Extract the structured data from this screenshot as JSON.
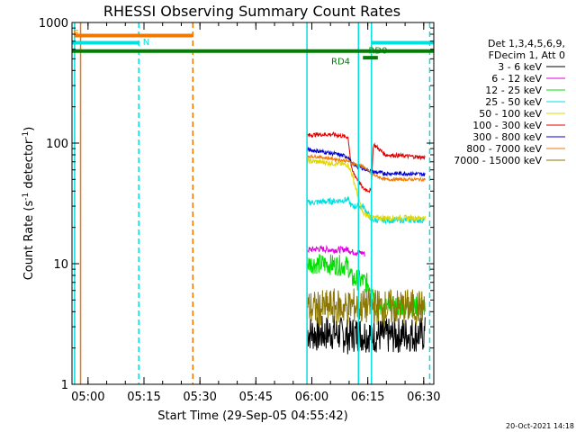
{
  "chart_data": {
    "type": "line",
    "title": "RHESSI Observing Summary Count Rates",
    "xlabel": "Start Time (29-Sep-05 04:55:42)",
    "ylabel": "Count Rate (s",
    "ylabel_sup": "-1",
    "ylabel_mid": " detector",
    "ylabel_sup2": "-1",
    "ylabel_end": ")",
    "xlim_minutes": [
      0,
      97
    ],
    "ylim": [
      1,
      1000
    ],
    "yscale": "log",
    "x_ticks": [
      {
        "label": "05:00",
        "minute": 4.3
      },
      {
        "label": "05:15",
        "minute": 19.3
      },
      {
        "label": "05:30",
        "minute": 34.3
      },
      {
        "label": "05:45",
        "minute": 49.3
      },
      {
        "label": "06:00",
        "minute": 64.3
      },
      {
        "label": "06:15",
        "minute": 79.3
      },
      {
        "label": "06:30",
        "minute": 94.3
      }
    ],
    "y_ticks": [
      {
        "label": "1",
        "value": 1
      },
      {
        "label": "10",
        "value": 10
      },
      {
        "label": "100",
        "value": 100
      },
      {
        "label": "1000",
        "value": 1000
      }
    ],
    "legend_header": [
      "Det 1,3,4,5,6,9,",
      "FDecim 1, Att 0"
    ],
    "series": [
      {
        "name": "3 - 6 keV",
        "color": "#000000",
        "x": [
          63.1,
          66,
          70,
          74,
          75,
          78,
          80,
          84,
          90,
          94.7
        ],
        "y": [
          2.7,
          2.6,
          2.7,
          2.5,
          2.6,
          2.6,
          2.6,
          2.5,
          2.6,
          2.6
        ],
        "noise": 0.35
      },
      {
        "name": "6 - 12 keV",
        "color": "#e000e0",
        "x": [
          63.1,
          66,
          70,
          74,
          75,
          78,
          78.5
        ],
        "y": [
          13,
          13.3,
          13,
          13.2,
          12.5,
          12.3,
          12
        ],
        "noise": 0.06
      },
      {
        "name": "12 - 25 keV",
        "color": "#00e000",
        "x": [
          63.1,
          66,
          70,
          74,
          75,
          78,
          80.5,
          81.5,
          84,
          90,
          94.7
        ],
        "y": [
          10,
          10,
          9.8,
          9.6,
          7.5,
          7.2,
          6.5,
          4.3,
          4.4,
          4.4,
          4.4
        ],
        "noise": 0.2
      },
      {
        "name": "25 - 50 keV",
        "color": "#00e0e0",
        "x": [
          63.1,
          66,
          70,
          74,
          75,
          78,
          80.5,
          84,
          90,
          94.7
        ],
        "y": [
          32,
          32.5,
          33,
          34,
          30,
          30,
          23,
          23,
          23,
          23
        ],
        "noise": 0.06
      },
      {
        "name": "50 - 100 keV",
        "color": "#e0d800",
        "x": [
          63.1,
          66,
          70,
          74,
          75,
          78,
          80.5,
          84,
          90,
          94.7
        ],
        "y": [
          71,
          70,
          68,
          66,
          56,
          26,
          24,
          24,
          24,
          24
        ],
        "noise": 0.05
      },
      {
        "name": "100 - 300 keV",
        "color": "#e00000",
        "x": [
          63.1,
          66,
          70,
          74,
          75,
          78,
          80.2,
          80.8,
          84,
          90,
          94.7
        ],
        "y": [
          116,
          118,
          118,
          112,
          60,
          42,
          40,
          98,
          80,
          78,
          76
        ],
        "noise": 0.04
      },
      {
        "name": "300 - 800 keV",
        "color": "#0000d0",
        "x": [
          63.1,
          66,
          70,
          74,
          75,
          78,
          80.5,
          84,
          90,
          94.7
        ],
        "y": [
          88,
          86,
          82,
          77,
          67,
          62,
          58,
          56,
          56,
          55
        ],
        "noise": 0.04
      },
      {
        "name": "800 - 7000 keV",
        "color": "#f07800",
        "x": [
          63.1,
          66,
          70,
          74,
          75,
          78,
          80.5,
          84,
          90,
          94.7
        ],
        "y": [
          78,
          77,
          74,
          71,
          68,
          64,
          55,
          50,
          50,
          50
        ],
        "noise": 0.03
      },
      {
        "name": "7000 - 15000 keV",
        "color": "#8c7800",
        "x": [
          63.1,
          66,
          70,
          74,
          75,
          78,
          80,
          84,
          90,
          94.7
        ],
        "y": [
          4.3,
          4.2,
          4.4,
          4.3,
          4.5,
          4.4,
          4.5,
          4.3,
          4.4,
          4.3
        ],
        "noise": 0.35
      }
    ],
    "state_bars": [
      {
        "label": "E",
        "color": "#f07800",
        "x_start": 0.7,
        "x_end": 32.4,
        "y": 780
      },
      {
        "label": "N",
        "color": "#00e0e0",
        "x_start": 0,
        "x_end": 17.9,
        "y": 680
      },
      {
        "label": "",
        "color": "#00e0e0",
        "x_start": 80.3,
        "x_end": 97,
        "y": 680
      },
      {
        "label": "",
        "color": "#008000",
        "x_start": 0,
        "x_end": 97,
        "y": 580
      },
      {
        "label": "RD0",
        "color": "#008000",
        "x_start": 78,
        "x_end": 82,
        "y": 510
      }
    ],
    "state_labels": [
      {
        "text": "E",
        "color": "#f07800",
        "x": 0.3,
        "y": 820
      },
      {
        "text": "N",
        "color": "#00e0e0",
        "x": 19,
        "y": 700
      },
      {
        "text": "RD0",
        "color": "#008000",
        "x": 79.5,
        "y": 590
      },
      {
        "text": "RD4",
        "color": "#008000",
        "x": 69.5,
        "y": 480
      }
    ],
    "vlines": [
      {
        "x": 0.7,
        "color": "#00e0e0",
        "style": "solid"
      },
      {
        "x": 2.3,
        "color": "#f07800",
        "style": "solid"
      },
      {
        "x": 17.9,
        "color": "#00e0e0",
        "style": "dashed"
      },
      {
        "x": 32.4,
        "color": "#f07800",
        "style": "dashed"
      },
      {
        "x": 63.0,
        "color": "#00e0e0",
        "style": "solid"
      },
      {
        "x": 76.8,
        "color": "#00e0e0",
        "style": "solid"
      },
      {
        "x": 80.3,
        "color": "#00e0e0",
        "style": "solid"
      },
      {
        "x": 95.9,
        "color": "#00e0e0",
        "style": "dashed"
      }
    ]
  },
  "footer": {
    "date_stamp": "20-Oct-2021 14:18"
  }
}
